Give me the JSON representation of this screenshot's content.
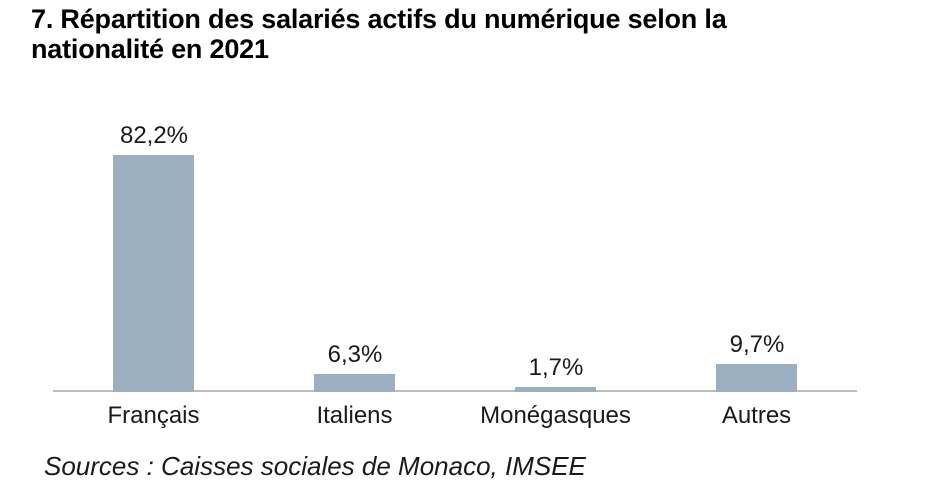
{
  "title": {
    "full": "7. Répartition des salariés actifs du numérique selon la nationalité en 2021",
    "lines": [
      "7. Répartition des salariés actifs du numérique selon la",
      "nationalité en 2021"
    ]
  },
  "chart_data": {
    "type": "bar",
    "title": "7. Répartition des salariés actifs du numérique selon la nationalité en 2021",
    "categories": [
      "Français",
      "Italiens",
      "Monégasques",
      "Autres"
    ],
    "values": [
      82.2,
      6.3,
      1.7,
      9.7
    ],
    "value_labels": [
      "82,2%",
      "6,3%",
      "1,7%",
      "9,7%"
    ],
    "unit": "%",
    "xlabel": "",
    "ylabel": "",
    "ylim": [
      0,
      90
    ],
    "grid": false,
    "legend": false,
    "bar_color": "#9bafc0",
    "axis_line_color": "#bdbdbd",
    "background_color": "#ffffff"
  },
  "source": {
    "text": "Sources : Caisses sociales de Monaco, IMSEE"
  }
}
